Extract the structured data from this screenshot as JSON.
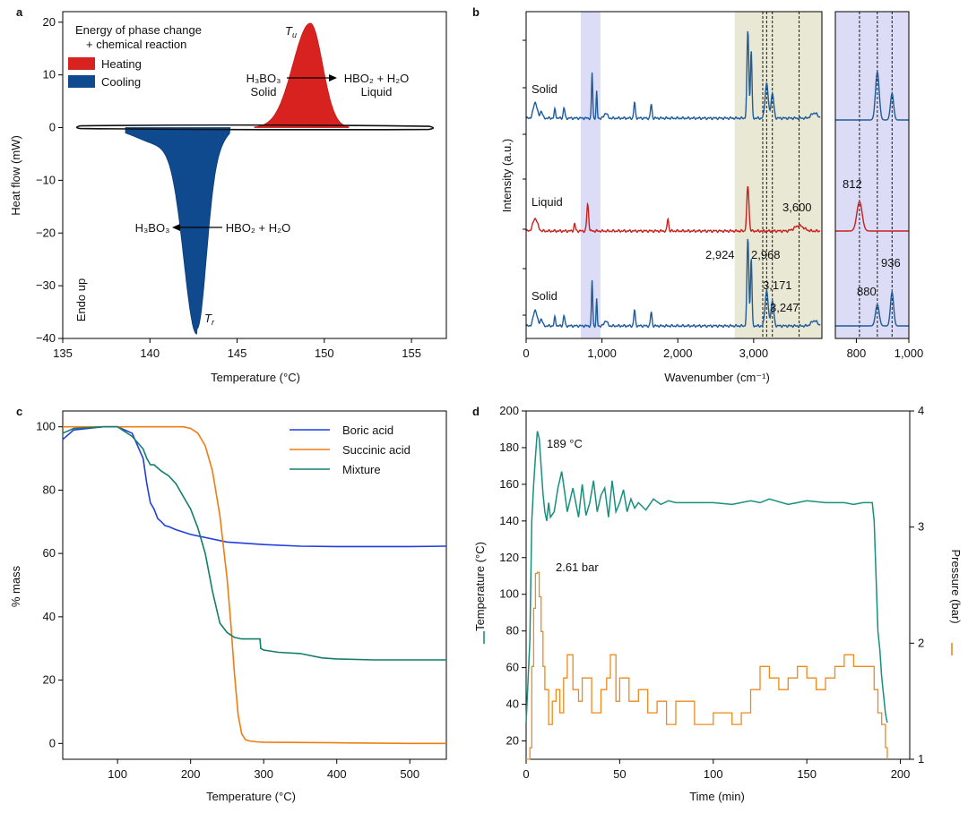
{
  "panels": {
    "a": {
      "label": "a",
      "xlabel": "Temperature (°C)",
      "ylabel": "Heat flow (mW)",
      "xticks": [
        "135",
        "140",
        "145",
        "150",
        "155"
      ],
      "yticks": [
        "20",
        "10",
        "0",
        "−10",
        "−20",
        "−30",
        "−40"
      ],
      "legend_title_1": "Energy of phase change",
      "legend_title_2": "+ chemical reaction",
      "legend": [
        "Heating",
        "Cooling"
      ],
      "colors": {
        "heating": "#d8221f",
        "cooling": "#0f4a8f"
      },
      "endo": "Endo up",
      "tu": "T",
      "tu_sub": "u",
      "tr": "T",
      "tr_sub": "r",
      "heat_left_1": "H₃BO₃",
      "heat_left_2": "Solid",
      "heat_right_1": "HBO₂ + H₂O",
      "heat_right_2": "Liquid",
      "cool_left": "H₃BO₃",
      "cool_right": "HBO₂ + H₂O"
    },
    "b": {
      "label": "b",
      "xlabel": "Wavenumber (cm⁻¹)",
      "ylabel": "Intensity (a.u.)",
      "xticks": [
        "0",
        "1,000",
        "2,000",
        "3,000"
      ],
      "xticks_zoom": [
        "800",
        "1,000"
      ],
      "traces": [
        "Solid",
        "Liquid",
        "Solid"
      ],
      "peaks": [
        "2,924",
        "2,968",
        "3,171",
        "3,247",
        "3,600",
        "812",
        "880",
        "936"
      ],
      "colors": {
        "solid": "#1f5c9c",
        "liquid": "#c8211f",
        "band_blue": "#dcdcf6",
        "band_olive": "#e9e8d4"
      }
    },
    "c": {
      "label": "c",
      "xlabel": "Temperature (°C)",
      "ylabel": "% mass",
      "xticks": [
        "100",
        "200",
        "300",
        "400",
        "500"
      ],
      "yticks": [
        "0",
        "20",
        "40",
        "60",
        "80",
        "100"
      ],
      "legend": [
        "Boric acid",
        "Succinic acid",
        "Mixture"
      ]
    },
    "d": {
      "label": "d",
      "xlabel": "Time (min)",
      "ylabel_left": "Temperature (°C)",
      "ylabel_right": "Pressure (bar)",
      "xticks": [
        "0",
        "50",
        "100",
        "150",
        "200"
      ],
      "yticks_left": [
        "20",
        "40",
        "60",
        "80",
        "100",
        "120",
        "140",
        "160",
        "180",
        "200"
      ],
      "yticks_right": [
        "1",
        "2",
        "3",
        "4"
      ],
      "ann_temp": "189 °C",
      "ann_pres": "2.61 bar"
    }
  },
  "chart_data": [
    {
      "type": "area",
      "title": "",
      "xlabel": "Temperature (°C)",
      "ylabel": "Heat flow (mW)",
      "xlim": [
        135,
        157
      ],
      "ylim": [
        -40,
        22
      ],
      "series": [
        {
          "name": "Heating",
          "peak_x": 149.2,
          "peak_y": 19.8,
          "onset_x": 146.0,
          "end_x": 151.4
        },
        {
          "name": "Cooling",
          "peak_x": 142.7,
          "peak_y": -38.0,
          "onset_x": 144.6,
          "end_x": 138.6
        }
      ]
    },
    {
      "type": "line",
      "title": "",
      "xlabel": "Wavenumber (cm⁻¹)",
      "ylabel": "Intensity (a.u.)",
      "xlim": [
        0,
        3900
      ],
      "xlim_zoom": [
        720,
        1000
      ],
      "bands": [
        [
          720,
          980
        ],
        [
          2750,
          3900
        ]
      ],
      "dashed_lines": [
        3171,
        3247,
        3600
      ],
      "dashed_lines_zoom": [
        812,
        880,
        936
      ],
      "series": [
        {
          "name": "Solid",
          "peaks_x": [
            120,
            380,
            500,
            870,
            930,
            1430,
            1650,
            2924,
            2968,
            3171,
            3247,
            3800
          ]
        },
        {
          "name": "Liquid",
          "peaks_x": [
            120,
            640,
            812,
            1870,
            2924,
            3600
          ]
        },
        {
          "name": "Solid",
          "peaks_x": [
            120,
            380,
            500,
            870,
            930,
            1430,
            1650,
            2924,
            2968,
            3171,
            3247
          ]
        }
      ]
    },
    {
      "type": "line",
      "title": "",
      "xlabel": "Temperature (°C)",
      "ylabel": "% mass",
      "xlim": [
        25,
        550
      ],
      "ylim": [
        -5,
        105
      ],
      "series": [
        {
          "name": "Boric acid",
          "color": "#1f3fe0",
          "x": [
            25,
            40,
            60,
            80,
            100,
            120,
            135,
            140,
            145,
            150,
            155,
            160,
            165,
            170,
            180,
            200,
            250,
            300,
            350,
            400,
            450,
            500,
            550
          ],
          "y": [
            96,
            99,
            99.5,
            100,
            100,
            98,
            90,
            82,
            76,
            74,
            71,
            70,
            68.8,
            68.5,
            67.5,
            66,
            63.6,
            62.8,
            62.3,
            62.2,
            62.2,
            62.2,
            62.3
          ]
        },
        {
          "name": "Succinic acid",
          "color": "#ef7c12",
          "x": [
            25,
            100,
            150,
            190,
            200,
            210,
            220,
            230,
            240,
            250,
            255,
            260,
            265,
            270,
            275,
            280,
            290,
            300,
            400,
            500,
            550
          ],
          "y": [
            100,
            100,
            100,
            100,
            99.5,
            98,
            94,
            86,
            72,
            52,
            38,
            22,
            9,
            3,
            1.2,
            0.8,
            0.5,
            0.4,
            0.2,
            0,
            0
          ]
        },
        {
          "name": "Mixture",
          "color": "#137d6e",
          "x": [
            25,
            40,
            60,
            80,
            100,
            120,
            135,
            140,
            145,
            150,
            160,
            170,
            180,
            190,
            200,
            210,
            220,
            230,
            240,
            250,
            260,
            270,
            280,
            290,
            295,
            296,
            300,
            320,
            350,
            380,
            400,
            450,
            500,
            550
          ],
          "y": [
            98,
            99.5,
            99.7,
            100,
            100,
            97,
            93,
            90,
            88,
            88,
            86,
            84.5,
            82,
            78,
            74,
            68,
            60,
            48,
            38,
            35,
            33.5,
            33,
            33,
            33,
            33,
            30,
            29.5,
            28.8,
            28.4,
            27,
            26.7,
            26.4,
            26.4,
            26.4
          ]
        }
      ]
    },
    {
      "type": "line",
      "title": "",
      "xlabel": "Time (min)",
      "ylabel": "Temperature (°C)",
      "ylabel_right": "Pressure (bar)",
      "xlim": [
        0,
        205
      ],
      "ylim": [
        10,
        200
      ],
      "ylim_right": [
        1,
        4
      ],
      "series": [
        {
          "name": "Temperature",
          "color": "#17907e",
          "x": [
            0,
            2,
            3,
            4,
            5,
            6,
            7,
            8,
            9,
            10,
            11,
            12,
            13,
            15,
            17,
            19,
            20,
            22,
            25,
            28,
            30,
            32,
            34,
            36,
            38,
            40,
            42,
            44,
            46,
            48,
            50,
            52,
            54,
            56,
            58,
            60,
            64,
            68,
            72,
            76,
            80,
            90,
            100,
            110,
            120,
            125,
            130,
            140,
            150,
            160,
            170,
            175,
            180,
            185,
            186,
            187,
            188,
            189,
            190,
            191,
            192,
            193
          ],
          "y": [
            30,
            75,
            140,
            160,
            175,
            189,
            185,
            170,
            155,
            145,
            140,
            150,
            142,
            145,
            158,
            167,
            160,
            145,
            158,
            142,
            160,
            143,
            150,
            162,
            145,
            154,
            158,
            142,
            162,
            145,
            150,
            157,
            145,
            152,
            147,
            150,
            146,
            152,
            149,
            151,
            150,
            150,
            150,
            149,
            151,
            150,
            152,
            149,
            151,
            150,
            150,
            149,
            150,
            150,
            140,
            110,
            80,
            70,
            55,
            45,
            35,
            30
          ]
        },
        {
          "name": "Pressure",
          "color": "#ee8a1c",
          "x": [
            0,
            2,
            3,
            4,
            5,
            6,
            7,
            8,
            9,
            10,
            12,
            14,
            16,
            18,
            20,
            22,
            25,
            28,
            30,
            35,
            40,
            43,
            45,
            48,
            50,
            55,
            60,
            65,
            70,
            75,
            80,
            90,
            100,
            105,
            110,
            115,
            120,
            125,
            130,
            135,
            140,
            145,
            150,
            155,
            160,
            165,
            170,
            175,
            180,
            185,
            186,
            188,
            190,
            192,
            193
          ],
          "y": [
            1.0,
            1.1,
            1.8,
            2.3,
            2.6,
            2.61,
            2.4,
            2.1,
            1.8,
            1.6,
            1.3,
            1.5,
            1.6,
            1.4,
            1.7,
            1.9,
            1.6,
            1.5,
            1.7,
            1.4,
            1.6,
            1.7,
            1.9,
            1.5,
            1.7,
            1.5,
            1.6,
            1.4,
            1.5,
            1.3,
            1.5,
            1.3,
            1.4,
            1.4,
            1.3,
            1.4,
            1.6,
            1.8,
            1.7,
            1.6,
            1.7,
            1.8,
            1.7,
            1.6,
            1.7,
            1.8,
            1.9,
            1.8,
            1.8,
            1.8,
            1.6,
            1.4,
            1.3,
            1.1,
            1.0
          ]
        }
      ]
    }
  ]
}
